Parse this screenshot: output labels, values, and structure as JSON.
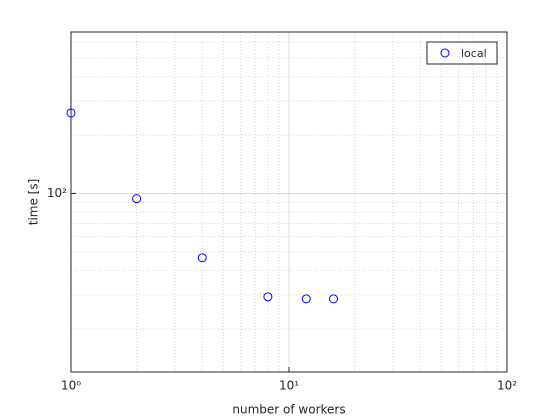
{
  "chart_data": {
    "type": "scatter",
    "xlabel": "number of workers",
    "ylabel": "time [s]",
    "xscale": "log",
    "yscale": "log",
    "grid": true,
    "minor_grid": true,
    "legend": "upper right",
    "xlim": [
      1,
      100
    ],
    "xticks": [
      {
        "value": 1,
        "label": "10⁰"
      },
      {
        "value": 10,
        "label": "10¹"
      },
      {
        "value": 100,
        "label": "10²"
      }
    ],
    "ylim": [
      12,
      680
    ],
    "yticks": [
      {
        "value": 100,
        "label": "10²"
      }
    ],
    "series": [
      {
        "name": "local",
        "color": "#0000ff",
        "x": [
          1,
          2,
          4,
          8,
          12,
          16
        ],
        "values": [
          260,
          94,
          46.6,
          29.3,
          28.6,
          28.6
        ]
      }
    ]
  }
}
